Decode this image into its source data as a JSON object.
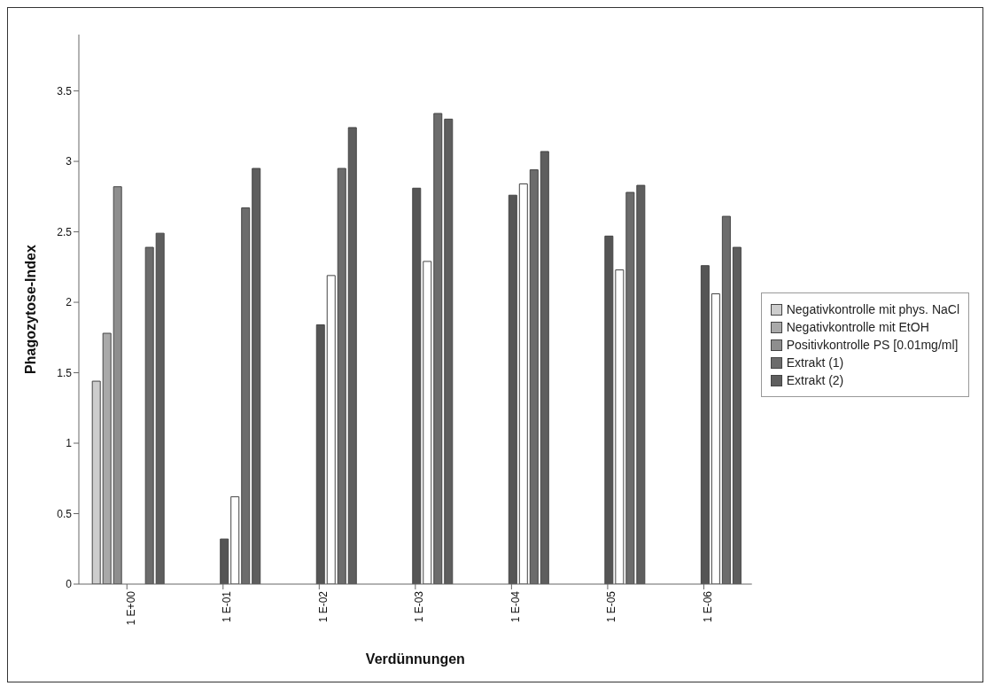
{
  "chart_data": {
    "type": "bar",
    "xlabel": "Verdünnungen",
    "ylabel": "Phagozytose-Index",
    "categories": [
      "1 E+00",
      "1 E-01",
      "1 E-02",
      "1 E-03",
      "1 E-04",
      "1 E-05",
      "1 E-06"
    ],
    "series": [
      {
        "name": "Negativkontrolle mit phys. NaCl",
        "color": "#cdcdcd",
        "values": [
          1.44,
          null,
          null,
          null,
          null,
          null,
          null
        ]
      },
      {
        "name": "Negativkontrolle mit EtOH",
        "color": "#a9a9a9",
        "values": [
          1.78,
          null,
          null,
          null,
          null,
          null,
          null
        ]
      },
      {
        "name": "Positivkontrolle PS [0.01mg/ml]",
        "color": "#8e8e8e",
        "values": [
          2.82,
          null,
          null,
          null,
          null,
          null,
          null
        ]
      },
      {
        "color": "#555555",
        "values": [
          null,
          0.32,
          1.84,
          2.81,
          2.76,
          2.47,
          2.26
        ]
      },
      {
        "color": "#ffffff",
        "values": [
          null,
          0.62,
          2.19,
          2.29,
          2.84,
          2.23,
          2.06
        ]
      },
      {
        "name": "Extrakt (1)",
        "color": "#6c6c6c",
        "values": [
          2.39,
          2.67,
          2.95,
          3.34,
          2.94,
          2.78,
          2.61
        ]
      },
      {
        "name": "Extrakt (2)",
        "color": "#5e5e5e",
        "values": [
          2.49,
          2.95,
          3.24,
          3.3,
          3.07,
          2.83,
          2.39
        ]
      }
    ],
    "ylim": [
      0,
      3.9
    ],
    "yticks": [
      0,
      0.5,
      1,
      1.5,
      2,
      2.5,
      3,
      3.5
    ],
    "legend": "right"
  }
}
